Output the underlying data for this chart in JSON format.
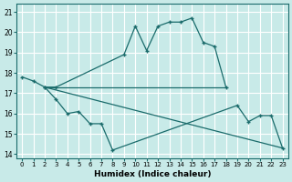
{
  "xlabel": "Humidex (Indice chaleur)",
  "background_color": "#c8eae8",
  "grid_color": "#ffffff",
  "line_color": "#1a6b6b",
  "xlim": [
    -0.5,
    23.5
  ],
  "ylim": [
    13.8,
    21.4
  ],
  "xticks": [
    0,
    1,
    2,
    3,
    4,
    5,
    6,
    7,
    8,
    9,
    10,
    11,
    12,
    13,
    14,
    15,
    16,
    17,
    18,
    19,
    20,
    21,
    22,
    23
  ],
  "yticks": [
    14,
    15,
    16,
    17,
    18,
    19,
    20,
    21
  ],
  "line1_x": [
    0,
    1,
    2,
    3,
    9,
    10,
    11,
    12,
    13,
    14,
    15,
    16,
    17,
    18
  ],
  "line1_y": [
    17.8,
    17.6,
    17.3,
    17.3,
    18.9,
    20.3,
    19.1,
    20.3,
    20.5,
    20.5,
    20.7,
    19.5,
    19.3,
    17.3
  ],
  "line2_x": [
    2,
    18
  ],
  "line2_y": [
    17.3,
    17.3
  ],
  "line3_x": [
    2,
    3,
    4,
    5,
    6,
    7,
    8,
    19,
    20,
    21,
    22,
    23
  ],
  "line3_y": [
    17.3,
    16.7,
    16.0,
    16.1,
    15.5,
    15.5,
    14.2,
    16.4,
    15.6,
    15.9,
    15.9,
    14.3
  ],
  "line4_x": [
    2,
    23
  ],
  "line4_y": [
    17.3,
    14.3
  ]
}
